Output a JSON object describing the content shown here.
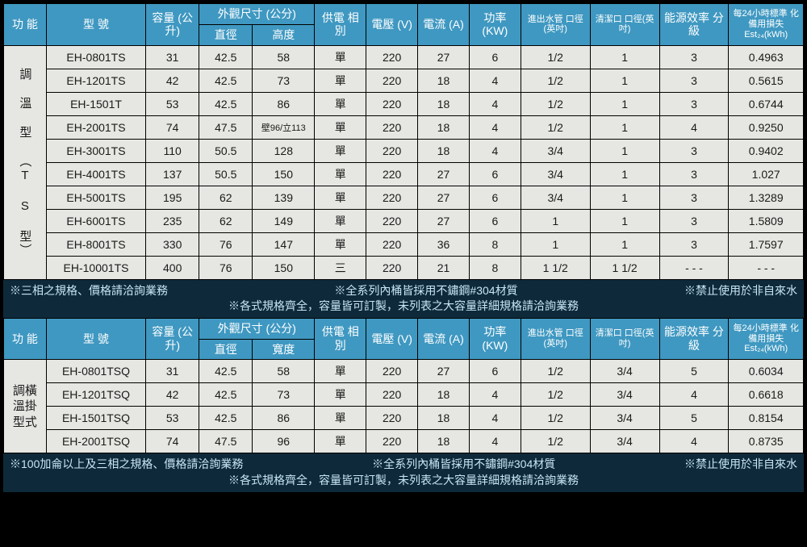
{
  "colors": {
    "header_bg": "#3f98c1",
    "header_fg": "#ffffff",
    "cell_bg": "#e6e6e2",
    "cell_fg": "#1a1a1a",
    "notes_bg": "#0e2a3a",
    "notes_fg": "#c7e6f5",
    "border": "#000000"
  },
  "headers": {
    "func": "功 能",
    "model": "型 號",
    "capacity": "容量\n(公升)",
    "dim_group": "外觀尺寸 (公分)",
    "dim_dia": "直徑",
    "dim_h": "高度",
    "dim_w": "寬度",
    "phase": "供電\n相別",
    "voltage": "電壓\n(V)",
    "current": "電流\n(A)",
    "power": "功率\n(KW)",
    "pipe": "進出水管\n口徑(英吋)",
    "clean": "清潔口\n口徑(英吋)",
    "eff": "能源效率\n分　級",
    "est24": "每24小時標準\n化備用損失\nEst₂₄(kWh)"
  },
  "table1": {
    "category": "調 溫 型 （T S 型）",
    "rows": [
      {
        "model": "EH-0801TS",
        "cap": "31",
        "dia": "42.5",
        "h": "58",
        "phase": "單",
        "v": "220",
        "a": "27",
        "kw": "6",
        "pipe": "1/2",
        "clean": "1",
        "eff": "3",
        "est": "0.4963"
      },
      {
        "model": "EH-1201TS",
        "cap": "42",
        "dia": "42.5",
        "h": "73",
        "phase": "單",
        "v": "220",
        "a": "18",
        "kw": "4",
        "pipe": "1/2",
        "clean": "1",
        "eff": "3",
        "est": "0.5615"
      },
      {
        "model": "EH-1501T",
        "cap": "53",
        "dia": "42.5",
        "h": "86",
        "phase": "單",
        "v": "220",
        "a": "18",
        "kw": "4",
        "pipe": "1/2",
        "clean": "1",
        "eff": "3",
        "est": "0.6744"
      },
      {
        "model": "EH-2001TS",
        "cap": "74",
        "dia": "47.5",
        "h": "壁96/立113",
        "phase": "單",
        "v": "220",
        "a": "18",
        "kw": "4",
        "pipe": "1/2",
        "clean": "1",
        "eff": "4",
        "est": "0.9250"
      },
      {
        "model": "EH-3001TS",
        "cap": "110",
        "dia": "50.5",
        "h": "128",
        "phase": "單",
        "v": "220",
        "a": "18",
        "kw": "4",
        "pipe": "3/4",
        "clean": "1",
        "eff": "3",
        "est": "0.9402"
      },
      {
        "model": "EH-4001TS",
        "cap": "137",
        "dia": "50.5",
        "h": "150",
        "phase": "單",
        "v": "220",
        "a": "27",
        "kw": "6",
        "pipe": "3/4",
        "clean": "1",
        "eff": "3",
        "est": "1.027"
      },
      {
        "model": "EH-5001TS",
        "cap": "195",
        "dia": "62",
        "h": "139",
        "phase": "單",
        "v": "220",
        "a": "27",
        "kw": "6",
        "pipe": "3/4",
        "clean": "1",
        "eff": "3",
        "est": "1.3289"
      },
      {
        "model": "EH-6001TS",
        "cap": "235",
        "dia": "62",
        "h": "149",
        "phase": "單",
        "v": "220",
        "a": "27",
        "kw": "6",
        "pipe": "1",
        "clean": "1",
        "eff": "3",
        "est": "1.5809"
      },
      {
        "model": "EH-8001TS",
        "cap": "330",
        "dia": "76",
        "h": "147",
        "phase": "單",
        "v": "220",
        "a": "36",
        "kw": "8",
        "pipe": "1",
        "clean": "1",
        "eff": "3",
        "est": "1.7597"
      },
      {
        "model": "EH-10001TS",
        "cap": "400",
        "dia": "76",
        "h": "150",
        "phase": "三",
        "v": "220",
        "a": "21",
        "kw": "8",
        "pipe": "1 1/2",
        "clean": "1 1/2",
        "eff": "- - -",
        "est": "- - -"
      }
    ]
  },
  "notes1": {
    "a": "※三相之規格、價格請洽詢業務",
    "b": "※全系列內桶皆採用不鏽鋼#304材質",
    "c": "※禁止使用於非自來水",
    "d": "※各式規格齊全，容量皆可訂製，未列表之大容量詳細規格請洽詢業務"
  },
  "table2": {
    "category": "調溫型 橫掛式",
    "cat_col1": "調溫型",
    "cat_col2": "橫掛式",
    "rows": [
      {
        "model": "EH-0801TSQ",
        "cap": "31",
        "dia": "42.5",
        "w": "58",
        "phase": "單",
        "v": "220",
        "a": "27",
        "kw": "6",
        "pipe": "1/2",
        "clean": "3/4",
        "eff": "5",
        "est": "0.6034"
      },
      {
        "model": "EH-1201TSQ",
        "cap": "42",
        "dia": "42.5",
        "w": "73",
        "phase": "單",
        "v": "220",
        "a": "18",
        "kw": "4",
        "pipe": "1/2",
        "clean": "3/4",
        "eff": "4",
        "est": "0.6618"
      },
      {
        "model": "EH-1501TSQ",
        "cap": "53",
        "dia": "42.5",
        "w": "86",
        "phase": "單",
        "v": "220",
        "a": "18",
        "kw": "4",
        "pipe": "1/2",
        "clean": "3/4",
        "eff": "5",
        "est": "0.8154"
      },
      {
        "model": "EH-2001TSQ",
        "cap": "74",
        "dia": "47.5",
        "w": "96",
        "phase": "單",
        "v": "220",
        "a": "18",
        "kw": "4",
        "pipe": "1/2",
        "clean": "3/4",
        "eff": "4",
        "est": "0.8735"
      }
    ]
  },
  "notes2": {
    "a": "※100加侖以上及三相之規格、價格請洽詢業務",
    "b": "※全系列內桶皆採用不鏽鋼#304材質",
    "c": "※禁止使用於非自來水",
    "d": "※各式規格齊全，容量皆可訂製，未列表之大容量詳細規格請洽詢業務"
  }
}
